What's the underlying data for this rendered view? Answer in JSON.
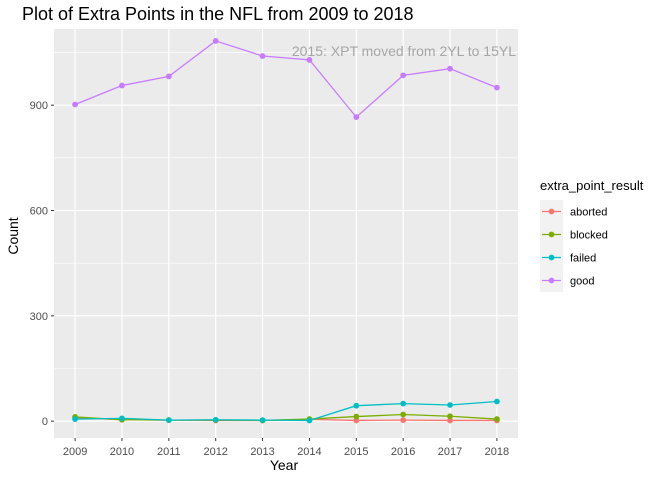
{
  "chart_data": {
    "type": "line",
    "title": "Plot of Extra Points in the NFL from 2009 to 2018",
    "xlabel": "Year",
    "ylabel": "Count",
    "x": [
      2009,
      2010,
      2011,
      2012,
      2013,
      2014,
      2015,
      2016,
      2017,
      2018
    ],
    "xlim": [
      2008.55,
      2018.45
    ],
    "ylim": [
      -48,
      1117
    ],
    "y_ticks": [
      0,
      300,
      600,
      900
    ],
    "y_tick_labels": [
      "0",
      "300",
      "600",
      "900"
    ],
    "x_tick_labels": [
      "2009",
      "2010",
      "2011",
      "2012",
      "2013",
      "2014",
      "2015",
      "2016",
      "2017",
      "2018"
    ],
    "grid": true,
    "legend": {
      "title": "extra_point_result",
      "position": "right"
    },
    "annotation": "2015: XPT moved from 2YL to 15YL",
    "series": [
      {
        "name": "aborted",
        "color": "#F8766D",
        "values": [
          10,
          4,
          3,
          2,
          2,
          5,
          2,
          3,
          2,
          2
        ]
      },
      {
        "name": "blocked",
        "color": "#7CAE00",
        "values": [
          12,
          4,
          3,
          3,
          2,
          6,
          13,
          19,
          14,
          6
        ]
      },
      {
        "name": "failed",
        "color": "#00BFC4",
        "values": [
          6,
          8,
          3,
          4,
          3,
          2,
          44,
          50,
          46,
          56
        ]
      },
      {
        "name": "good",
        "color": "#C77CFF",
        "values": [
          902,
          956,
          982,
          1083,
          1040,
          1029,
          866,
          985,
          1004,
          950
        ]
      }
    ]
  }
}
